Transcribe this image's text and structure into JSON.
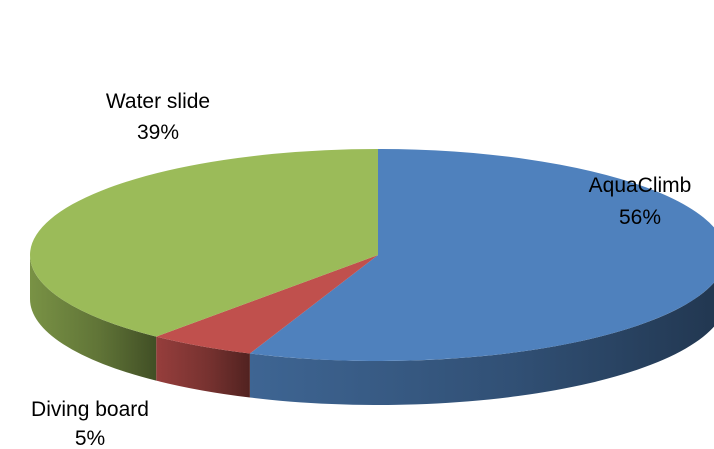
{
  "chart_data": {
    "type": "pie",
    "style": "3d",
    "slices": [
      {
        "name": "AquaClimb",
        "value": 56,
        "label_pct": "56%",
        "color": "#4F81BD"
      },
      {
        "name": "Diving board",
        "value": 5,
        "label_pct": "5%",
        "color": "#C0504D"
      },
      {
        "name": "Water slide",
        "value": 39,
        "label_pct": "39%",
        "color": "#9BBB59"
      }
    ],
    "start_angle_deg": -90,
    "direction": "clockwise",
    "legend": "none",
    "data_labels": "category name and percentage"
  }
}
